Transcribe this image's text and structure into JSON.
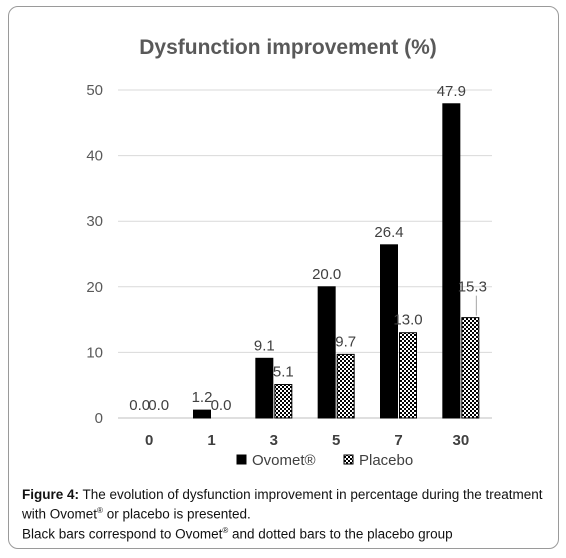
{
  "chart_data": {
    "type": "bar",
    "title": "Dysfunction improvement (%)",
    "categories": [
      "0",
      "1",
      "3",
      "5",
      "7",
      "30"
    ],
    "series": [
      {
        "name": "Ovomet®",
        "values": [
          0.0,
          1.2,
          9.1,
          20.0,
          26.4,
          47.9
        ],
        "labels": [
          "0.0",
          "1.2",
          "9.1",
          "20.0",
          "26.4",
          "47.9"
        ],
        "color": "#000000",
        "pattern": "solid"
      },
      {
        "name": "Placebo",
        "values": [
          0.0,
          null,
          5.1,
          9.7,
          13.0,
          15.3
        ],
        "labels": [
          "0.0",
          "0.0",
          "5.1",
          "9.7",
          "13.0",
          "15.3"
        ],
        "color": "#000000",
        "pattern": "dotted"
      }
    ],
    "ylim": [
      0,
      50
    ],
    "yticks": [
      "0",
      "10",
      "20",
      "30",
      "40",
      "50"
    ],
    "grid": true,
    "legend": "bottom"
  },
  "caption": {
    "label": "Figure 4:",
    "line1": " The evolution of dysfunction improvement in percentage during the treatment with Ovomet",
    "reg": "®",
    "line1_end": " or placebo is presented.",
    "line2_pre": " Black bars correspond to Ovomet",
    "line2_post": " and dotted bars to the placebo group"
  }
}
